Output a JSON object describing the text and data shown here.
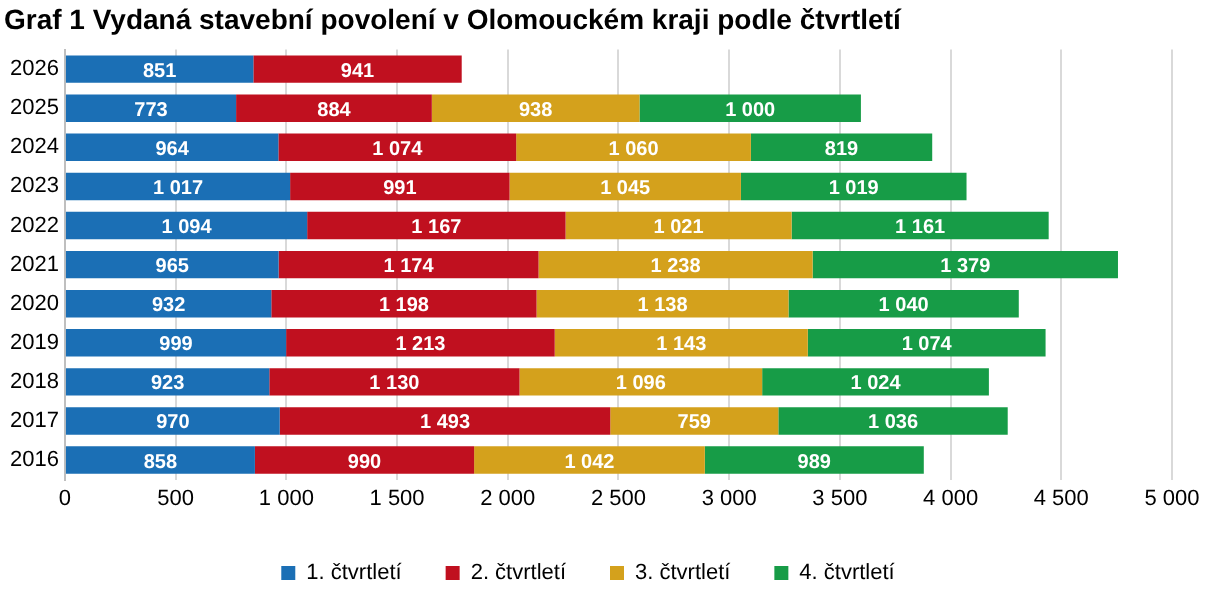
{
  "chart_data": {
    "type": "bar",
    "title": "Graf 1 Vydaná stavební povolení v Olomouckém kraji podle čtvrtletí",
    "orientation": "horizontal",
    "stacked": true,
    "categories": [
      "2026",
      "2025",
      "2024",
      "2023",
      "2022",
      "2021",
      "2020",
      "2019",
      "2018",
      "2017",
      "2016"
    ],
    "series": [
      {
        "name": "1. čtvrtletí",
        "color": "#1b6fb5",
        "values": [
          851,
          773,
          964,
          1017,
          1094,
          965,
          932,
          999,
          923,
          970,
          858
        ],
        "value_labels": [
          "851",
          "773",
          "964",
          "1 017",
          "1 094",
          "965",
          "932",
          "999",
          "923",
          "970",
          "858"
        ]
      },
      {
        "name": "2. čtvrtletí",
        "color": "#c0101f",
        "values": [
          941,
          884,
          1074,
          991,
          1167,
          1174,
          1198,
          1213,
          1130,
          1493,
          990
        ],
        "value_labels": [
          "941",
          "884",
          "1 074",
          "991",
          "1 167",
          "1 174",
          "1 198",
          "1 213",
          "1 130",
          "1 493",
          "990"
        ]
      },
      {
        "name": "3. čtvrtletí",
        "color": "#d4a11c",
        "values": [
          null,
          938,
          1060,
          1045,
          1021,
          1238,
          1138,
          1143,
          1096,
          759,
          1042
        ],
        "value_labels": [
          null,
          "938",
          "1 060",
          "1 045",
          "1 021",
          "1 238",
          "1 138",
          "1 143",
          "1 096",
          "759",
          "1 042"
        ]
      },
      {
        "name": "4. čtvrtletí",
        "color": "#179c47",
        "values": [
          null,
          1000,
          819,
          1019,
          1161,
          1379,
          1040,
          1074,
          1024,
          1036,
          989
        ],
        "value_labels": [
          null,
          "1 000",
          "819",
          "1 019",
          "1 161",
          "1 379",
          "1 040",
          "1 074",
          "1 024",
          "1 036",
          "989"
        ]
      }
    ],
    "xlim": [
      0,
      5000
    ],
    "xticks": [
      0,
      500,
      {
        "value": 1000,
        "label": "1 000"
      },
      {
        "value": 1500,
        "label": "1 500"
      },
      {
        "value": 2000,
        "label": "2 000"
      },
      {
        "value": 2500,
        "label": "2 500"
      },
      {
        "value": 3000,
        "label": "3 000"
      },
      {
        "value": 3500,
        "label": "3 500"
      },
      {
        "value": 4000,
        "label": "4 000"
      },
      {
        "value": 4500,
        "label": "4 500"
      },
      {
        "value": 5000,
        "label": "5 000"
      }
    ],
    "grid": "x",
    "legend": "bottom"
  }
}
